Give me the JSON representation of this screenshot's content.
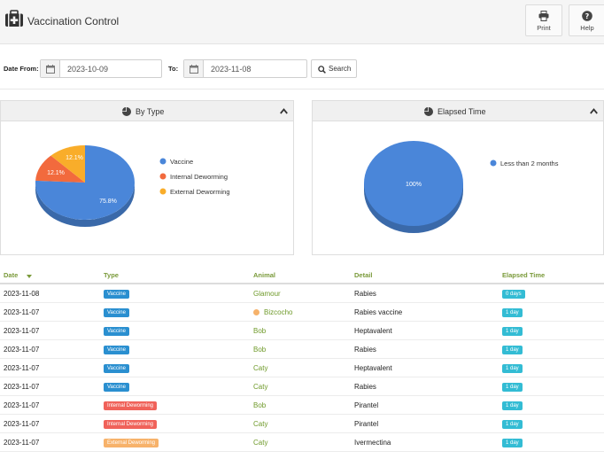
{
  "header": {
    "title": "Vaccination Control",
    "print_label": "Print",
    "help_label": "Help"
  },
  "filter": {
    "date_from_label": "Date From:",
    "date_from_value": "2023-10-09",
    "to_label": "To:",
    "to_value": "2023-11-08",
    "search_label": "Search"
  },
  "panels": {
    "by_type": {
      "title": "By Type",
      "legend": [
        "Vaccine",
        "Internal Deworming",
        "External Deworming"
      ]
    },
    "elapsed": {
      "title": "Elapsed Time",
      "legend": [
        "Less than 2  months"
      ]
    }
  },
  "chart_data": [
    {
      "type": "pie",
      "title": "By Type",
      "categories": [
        "Vaccine",
        "Internal Deworming",
        "External Deworming"
      ],
      "values": [
        75.8,
        12.1,
        12.1
      ],
      "labels": [
        "75.8%",
        "12.1%",
        "12.1%"
      ],
      "colors": [
        "#4a86d9",
        "#f26a3d",
        "#f9ad2a"
      ],
      "legend": "right"
    },
    {
      "type": "pie",
      "title": "Elapsed Time",
      "categories": [
        "Less than 2  months"
      ],
      "values": [
        100
      ],
      "labels": [
        "100%"
      ],
      "colors": [
        "#4a86d9"
      ],
      "legend": "right"
    }
  ],
  "table": {
    "headers": [
      "Date",
      "Type",
      "Animal",
      "Detail",
      "Elapsed Time"
    ],
    "rows": [
      {
        "date": "2023-11-08",
        "type": "Vaccine",
        "type_color": "#2a8fd0",
        "animal": "Glamour",
        "dot": false,
        "detail": "Rabies",
        "elapsed": "0 days"
      },
      {
        "date": "2023-11-07",
        "type": "Vaccine",
        "type_color": "#2a8fd0",
        "animal": "Bizcocho",
        "dot": true,
        "detail": "Rabies vaccine",
        "elapsed": "1 day"
      },
      {
        "date": "2023-11-07",
        "type": "Vaccine",
        "type_color": "#2a8fd0",
        "animal": "Bob",
        "dot": false,
        "detail": "Heptavalent",
        "elapsed": "1 day"
      },
      {
        "date": "2023-11-07",
        "type": "Vaccine",
        "type_color": "#2a8fd0",
        "animal": "Bob",
        "dot": false,
        "detail": "Rabies",
        "elapsed": "1 day"
      },
      {
        "date": "2023-11-07",
        "type": "Vaccine",
        "type_color": "#2a8fd0",
        "animal": "Caty",
        "dot": false,
        "detail": "Heptavalent",
        "elapsed": "1 day"
      },
      {
        "date": "2023-11-07",
        "type": "Vaccine",
        "type_color": "#2a8fd0",
        "animal": "Caty",
        "dot": false,
        "detail": "Rabies",
        "elapsed": "1 day"
      },
      {
        "date": "2023-11-07",
        "type": "Internal Deworming",
        "type_color": "#f0625a",
        "animal": "Bob",
        "dot": false,
        "detail": "Pirantel",
        "elapsed": "1 day"
      },
      {
        "date": "2023-11-07",
        "type": "Internal Deworming",
        "type_color": "#f0625a",
        "animal": "Caty",
        "dot": false,
        "detail": "Pirantel",
        "elapsed": "1 day"
      },
      {
        "date": "2023-11-07",
        "type": "External Deworming",
        "type_color": "#f7b26a",
        "animal": "Caty",
        "dot": false,
        "detail": "Ivermectina",
        "elapsed": "1 day"
      }
    ]
  }
}
